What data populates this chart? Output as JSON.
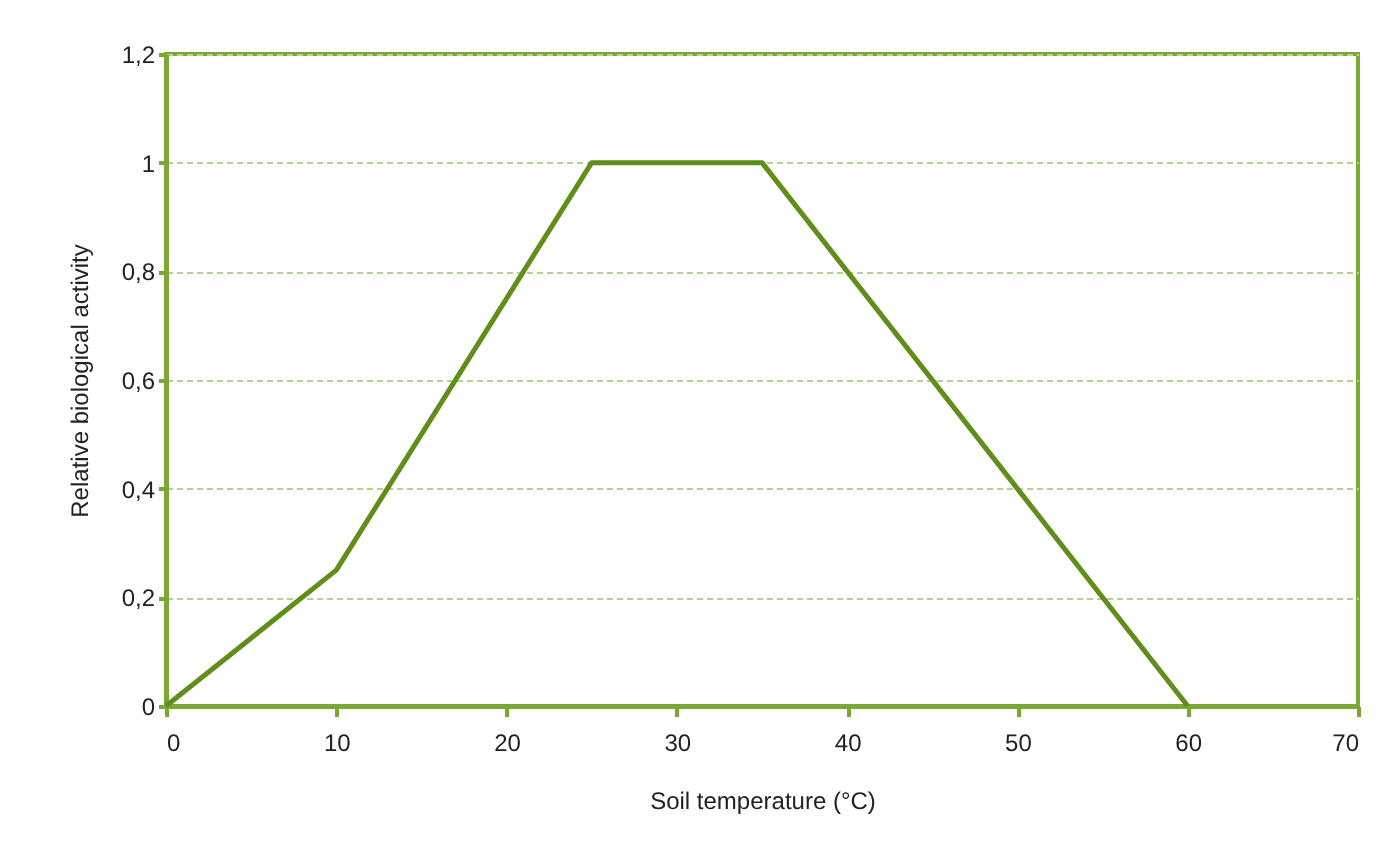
{
  "chart_data": {
    "type": "line",
    "xlabel": "Soil temperature (°C)",
    "ylabel": "Relative biological activity",
    "x": [
      0,
      10,
      25,
      35,
      60
    ],
    "series": [
      {
        "color": "#5f8f1a",
        "values": [
          0,
          0.25,
          1,
          1,
          0
        ]
      }
    ],
    "xlim": [
      0,
      70
    ],
    "xticks": [
      0,
      10,
      20,
      30,
      40,
      50,
      60,
      70
    ],
    "ylim": [
      0,
      1.2
    ],
    "yticks": [
      0,
      {
        "value": 0.2,
        "label": "0,2"
      },
      {
        "value": 0.4,
        "label": "0,4"
      },
      {
        "value": 0.6,
        "label": "0,6"
      },
      {
        "value": 0.8,
        "label": "0,8"
      },
      1,
      {
        "value": 1.2,
        "label": "1,2"
      }
    ],
    "grid": "y",
    "marker": "none",
    "line_style": "solid"
  }
}
